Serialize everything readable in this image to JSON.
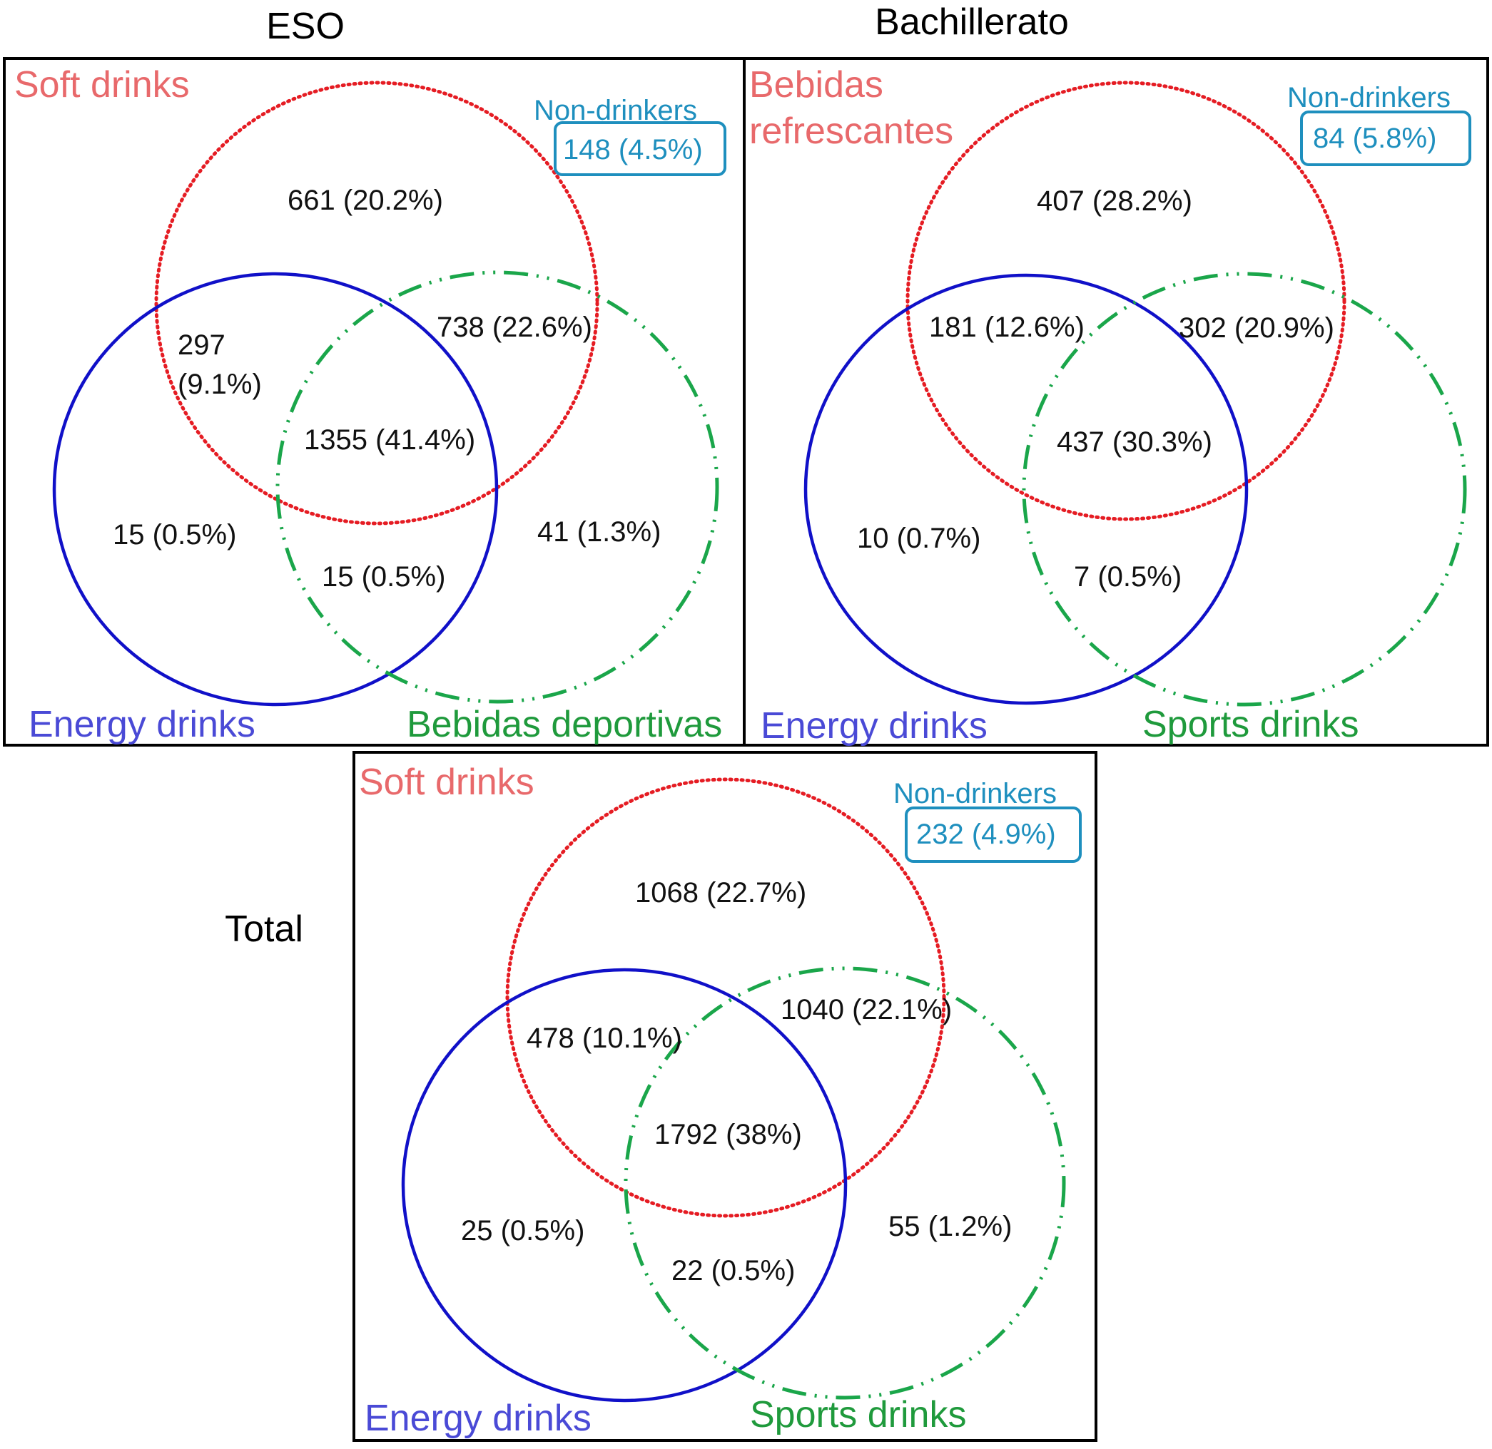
{
  "colors": {
    "soft_circle": "#e51c23",
    "energy_circle": "#1010c8",
    "sports_circle": "#1aa64a",
    "soft_label": "#e8696b",
    "energy_label": "#4a4ad6",
    "sports_label": "#1f9a3c",
    "non_drinkers": "#1e8fbe"
  },
  "panels": {
    "eso": {
      "title": "ESO",
      "soft_label": "Soft drinks",
      "energy_label": "Energy drinks",
      "sports_label": "Bebidas deportivas",
      "non_drinkers_label": "Non-drinkers",
      "non_drinkers_value": "148 (4.5%)",
      "regions": {
        "soft_only": "661 (20.2%)",
        "soft_energy_line1": "297",
        "soft_energy_line2": "(9.1%)",
        "soft_sports": "738 (22.6%)",
        "all_three": "1355 (41.4%)",
        "energy_only": "15 (0.5%)",
        "sports_only": "41 (1.3%)",
        "energy_sports": "15 (0.5%)"
      }
    },
    "bachillerato": {
      "title": "Bachillerato",
      "soft_label_line1": "Bebidas",
      "soft_label_line2": "refrescantes",
      "energy_label": "Energy drinks",
      "sports_label": "Sports drinks",
      "non_drinkers_label": "Non-drinkers",
      "non_drinkers_value": "84 (5.8%)",
      "regions": {
        "soft_only": "407 (28.2%)",
        "soft_energy": "181 (12.6%)",
        "soft_sports": "302 (20.9%)",
        "all_three": "437 (30.3%)",
        "energy_only": "10 (0.7%)",
        "energy_sports": "7 (0.5%)"
      }
    },
    "total": {
      "title": "Total",
      "soft_label": "Soft drinks",
      "energy_label": "Energy drinks",
      "sports_label": "Sports drinks",
      "non_drinkers_label": "Non-drinkers",
      "non_drinkers_value": "232 (4.9%)",
      "regions": {
        "soft_only": "1068 (22.7%)",
        "soft_energy": "478 (10.1%)",
        "soft_sports": "1040 (22.1%)",
        "all_three": "1792 (38%)",
        "energy_only": "25 (0.5%)",
        "sports_only": "55 (1.2%)",
        "energy_sports": "22 (0.5%)"
      }
    }
  }
}
